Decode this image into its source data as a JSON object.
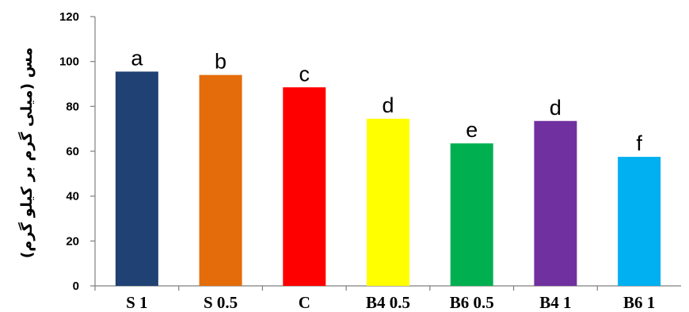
{
  "chart_data": {
    "type": "bar",
    "categories": [
      "S 1",
      "S 0.5",
      "C",
      "B4 0.5",
      "B6 0.5",
      "B4 1",
      "B6 1"
    ],
    "values": [
      95.5,
      94,
      88.5,
      74.5,
      63.5,
      73.5,
      57.5
    ],
    "letters": [
      "a",
      "b",
      "c",
      "d",
      "e",
      "d",
      "f"
    ],
    "colors": [
      "#1f4173",
      "#e46c0a",
      "#ff0000",
      "#ffff00",
      "#00b050",
      "#7030a0",
      "#00b0f0"
    ],
    "yticks": [
      0,
      20,
      40,
      60,
      80,
      100,
      120
    ],
    "ylim": [
      0,
      120
    ],
    "ylabel": "مس (میلی گرم بر کیلو گرم)",
    "xlabel": "",
    "title": "",
    "grid": false
  }
}
